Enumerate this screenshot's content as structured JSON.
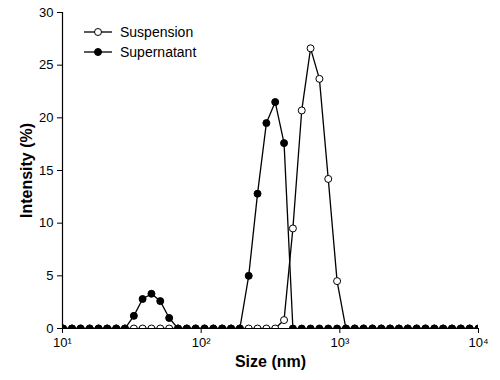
{
  "chart_data": {
    "type": "line",
    "x_label": "Size (nm)",
    "y_label": "Intensity (%)",
    "log": "x",
    "legend": "top-left",
    "grid": false,
    "xlim": [
      10,
      10000
    ],
    "xticks": [
      {
        "value": 10,
        "label": "10¹"
      },
      {
        "value": 100,
        "label": "10²"
      },
      {
        "value": 1000,
        "label": "10³"
      },
      {
        "value": 10000,
        "label": "10⁴"
      }
    ],
    "ylim": [
      0,
      30
    ],
    "yticks": [
      0,
      5,
      10,
      15,
      20,
      25,
      30
    ],
    "x": [
      10.1,
      11.7,
      13.5,
      15.7,
      18.2,
      21.0,
      24.4,
      28.2,
      32.7,
      37.8,
      43.8,
      50.7,
      58.8,
      68.1,
      78.8,
      91.3,
      105.7,
      122.4,
      141.8,
      164.2,
      190.1,
      220.2,
      255.0,
      295.3,
      342.0,
      396.1,
      458.7,
      531.2,
      615.1,
      712.4,
      825.0,
      955.4,
      1106,
      1281,
      1484,
      1718,
      1990,
      2305,
      2669,
      3091,
      3580,
      4145,
      4801,
      5560,
      6439,
      7456,
      8635,
      10000
    ],
    "series": [
      {
        "name": "Suspension",
        "color": "#000000",
        "marker": "open circle",
        "line_style": "solid",
        "values": [
          0,
          0,
          0,
          0,
          0,
          0,
          0,
          0,
          0,
          0,
          0,
          0,
          0,
          0,
          0,
          0,
          0,
          0,
          0,
          0,
          0,
          0,
          0,
          0,
          0,
          0.8,
          9.5,
          20.7,
          26.6,
          23.7,
          14.2,
          4.5,
          0,
          0,
          0,
          0,
          0,
          0,
          0,
          0,
          0,
          0,
          0,
          0,
          0,
          0,
          0,
          0
        ]
      },
      {
        "name": "Supernatant",
        "color": "#000000",
        "marker": "filled circle",
        "line_style": "solid",
        "values": [
          0,
          0,
          0,
          0,
          0,
          0,
          0,
          0,
          1.2,
          2.8,
          3.3,
          2.6,
          1.0,
          0,
          0,
          0,
          0,
          0,
          0,
          0,
          0,
          5.0,
          12.8,
          19.5,
          21.5,
          17.6,
          0,
          0,
          0,
          0,
          0,
          0,
          0,
          0,
          0,
          0,
          0,
          0,
          0,
          0,
          0,
          0,
          0,
          0,
          0,
          0,
          0,
          0
        ]
      }
    ]
  }
}
